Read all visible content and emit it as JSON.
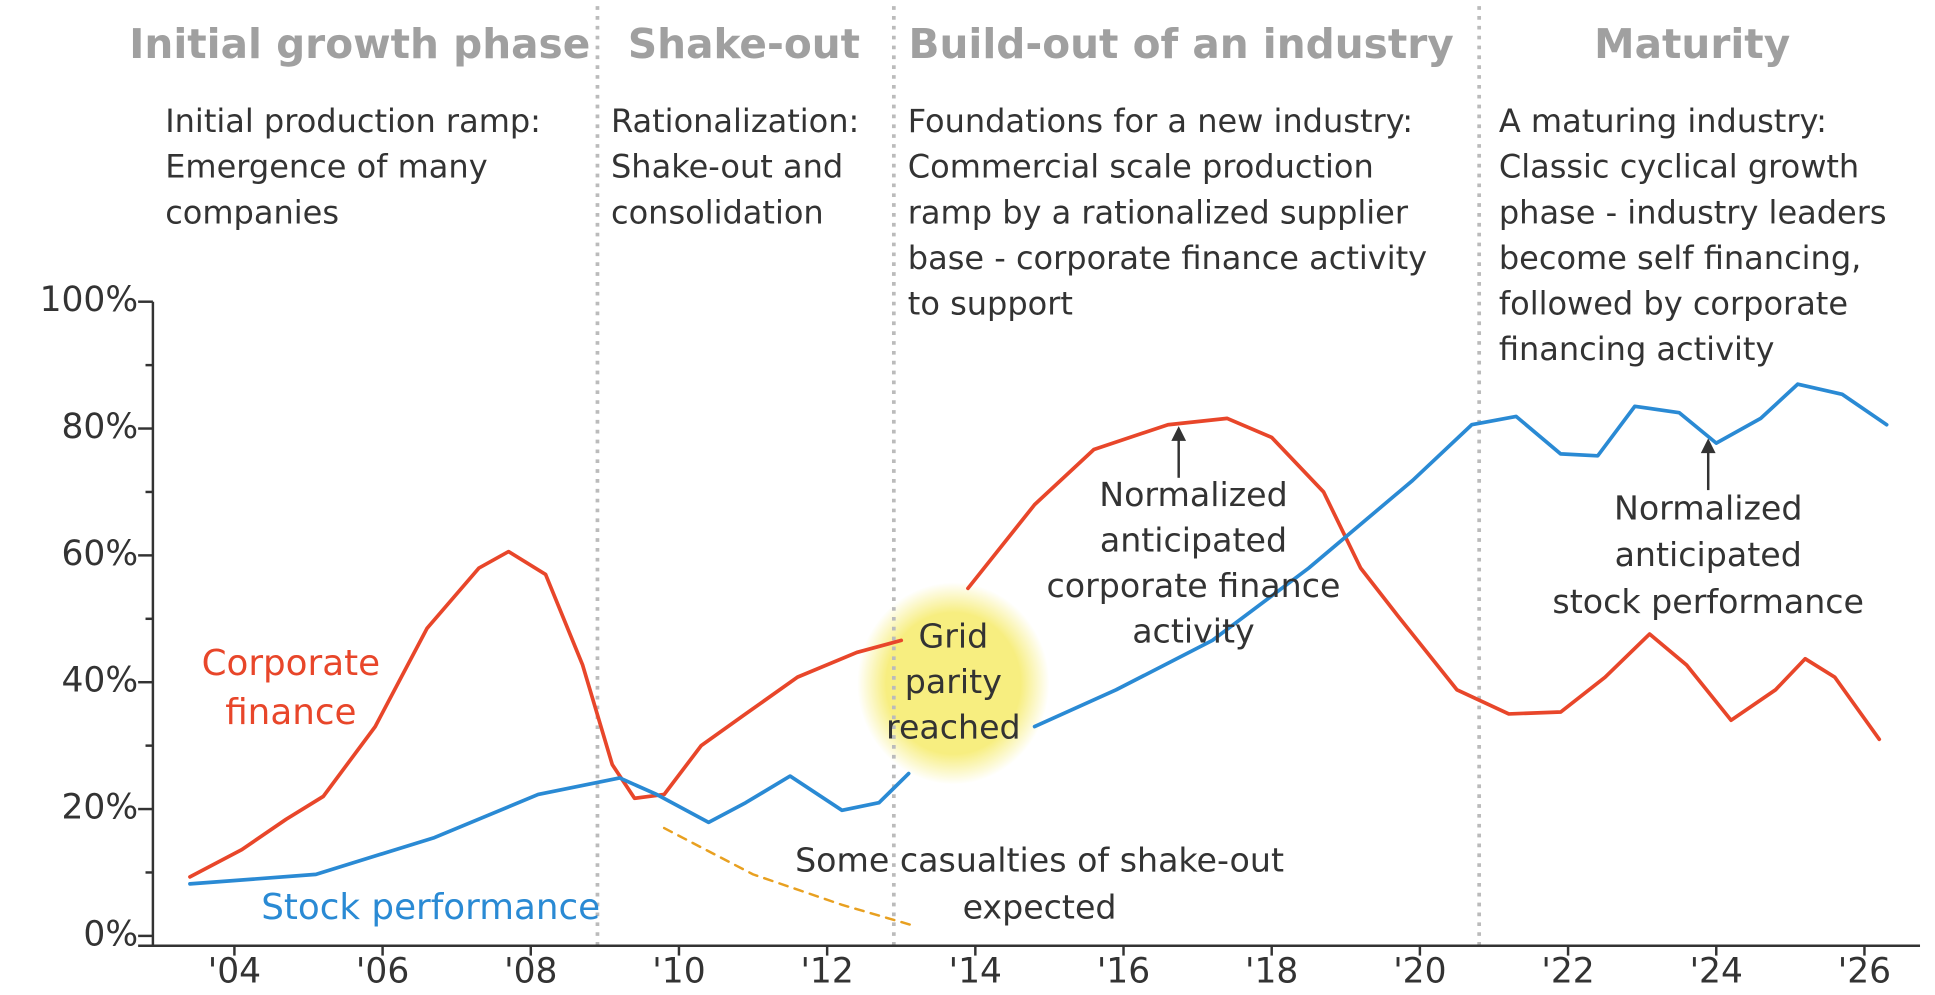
{
  "chart_data": {
    "type": "line",
    "phases": [
      {
        "title": "Initial growth phase",
        "lines": [
          "Initial production ramp:",
          "Emergence of many",
          "companies"
        ]
      },
      {
        "title": "Shake-out",
        "lines": [
          "Rationalization:",
          "Shake-out and",
          "consolidation"
        ]
      },
      {
        "title": "Build-out of an industry",
        "lines": [
          "Foundations for a new industry:",
          "Commercial scale production",
          "ramp by a rationalized supplier",
          "base - corporate finance activity",
          "to support"
        ]
      },
      {
        "title": "Maturity",
        "lines": [
          "A maturing industry:",
          "Classic cyclical growth",
          "phase - industry leaders",
          "become self financing,",
          "followed by corporate",
          "financing activity"
        ]
      }
    ],
    "phase_dividers": [
      2008.9,
      2012.9,
      2020.8
    ],
    "series": [
      {
        "name": "Corporate finance",
        "color": "#e8462a",
        "x": [
          2003.4,
          2004.1,
          2004.7,
          2005.2,
          2005.9,
          2006.6,
          2007.3,
          2007.7,
          2008.2,
          2008.7,
          2009.1,
          2009.4,
          2009.8,
          2010.3,
          2010.9,
          2011.6,
          2012.4,
          2013.0,
          2013.4,
          2013.9,
          2014.8,
          2015.6,
          2016.6,
          2017.4,
          2018.0,
          2018.7,
          2019.2,
          2019.7,
          2020.5,
          2021.2,
          2021.9,
          2022.5,
          2023.1,
          2023.6,
          2024.2,
          2024.8,
          2025.2,
          2025.6,
          2026.2
        ],
        "values": [
          9.3,
          13.6,
          18.4,
          22,
          33,
          48.5,
          58,
          60.6,
          57,
          42.7,
          27,
          21.7,
          22.3,
          30,
          35,
          40.8,
          44.7,
          46.6,
          null,
          54.8,
          68,
          76.7,
          80.6,
          81.6,
          78.6,
          70,
          58,
          50.5,
          38.8,
          35,
          35.3,
          40.8,
          47.6,
          42.7,
          34,
          38.8,
          43.7,
          40.8,
          31
        ]
      },
      {
        "name": "Stock performance",
        "color": "#2a8ad4",
        "x": [
          2003.4,
          2005.1,
          2006.7,
          2008.1,
          2009.2,
          2009.7,
          2010.4,
          2010.9,
          2011.5,
          2012.2,
          2012.7,
          2013.1,
          2014.0,
          2014.8,
          2015.9,
          2017.2,
          2018.5,
          2019.9,
          2020.7,
          2021.3,
          2021.9,
          2022.4,
          2022.9,
          2023.5,
          2024.0,
          2024.6,
          2025.1,
          2025.7,
          2026.3
        ],
        "values": [
          8.2,
          9.7,
          15.5,
          22.3,
          24.9,
          22.3,
          17.9,
          21,
          25.2,
          19.8,
          21,
          25.6,
          null,
          33,
          38.8,
          46.6,
          58,
          71.8,
          80.6,
          81.9,
          76,
          75.7,
          83.5,
          82.5,
          77.7,
          81.6,
          87,
          85.4,
          80.6
        ]
      },
      {
        "color": "#e8a020",
        "dashed": true,
        "x": [
          2009.8,
          2011.0,
          2012.2,
          2013.2
        ],
        "values": [
          17,
          9.7,
          4.9,
          1.5
        ]
      }
    ],
    "annotations": {
      "corporate_label": [
        "Corporate",
        "finance"
      ],
      "grid_parity": [
        "Grid",
        "parity",
        "reached"
      ],
      "corporate_normalized": [
        "Normalized",
        "anticipated",
        "corporate finance",
        "activity"
      ],
      "stock_normalized": [
        "Normalized",
        "anticipated",
        "stock performance"
      ],
      "casualties": [
        "Some casualties of shake-out",
        "expected"
      ]
    },
    "xlim": [
      2002.9,
      2026.75
    ],
    "xticks": [
      {
        "value": 2004,
        "label": "'04"
      },
      {
        "value": 2006,
        "label": "'06"
      },
      {
        "value": 2008,
        "label": "'08"
      },
      {
        "value": 2010,
        "label": "'10"
      },
      {
        "value": 2012,
        "label": "'12"
      },
      {
        "value": 2014,
        "label": "'14"
      },
      {
        "value": 2016,
        "label": "'16"
      },
      {
        "value": 2018,
        "label": "'18"
      },
      {
        "value": 2020,
        "label": "'20"
      },
      {
        "value": 2022,
        "label": "'22"
      },
      {
        "value": 2024,
        "label": "'24"
      },
      {
        "value": 2026,
        "label": "'26"
      }
    ],
    "ylim": [
      0,
      100
    ],
    "yticks": [
      {
        "value": 0,
        "label": "0%"
      },
      {
        "value": 20,
        "label": "20%"
      },
      {
        "value": 40,
        "label": "40%"
      },
      {
        "value": 60,
        "label": "60%"
      },
      {
        "value": 80,
        "label": "80%"
      },
      {
        "value": 100,
        "label": "100%"
      }
    ],
    "yticks_minor": [
      10,
      30,
      50,
      70,
      90
    ]
  }
}
